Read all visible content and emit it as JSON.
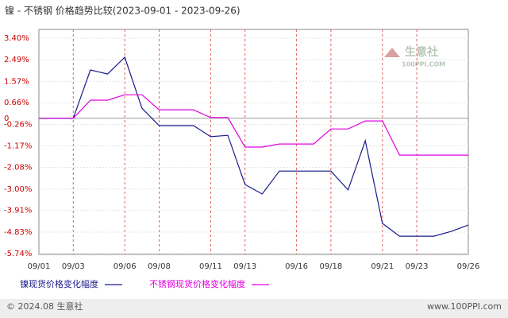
{
  "chart_data": {
    "type": "line",
    "title": "镍 - 不锈钢 价格趋势比较(2023-09-01 - 2023-09-26)",
    "categories": [
      "09/01",
      null,
      "09/03",
      null,
      null,
      "09/06",
      null,
      "09/08",
      null,
      null,
      "09/11",
      null,
      "09/13",
      null,
      null,
      "09/16",
      null,
      "09/18",
      null,
      null,
      "09/21",
      null,
      "09/23",
      null,
      null,
      "09/26"
    ],
    "series": [
      {
        "name": "镍现货价格变化幅度",
        "color": "#1a1a8c",
        "values": [
          0,
          0,
          0,
          2.05,
          1.88,
          2.59,
          0.43,
          -0.31,
          -0.31,
          -0.31,
          -0.78,
          -0.72,
          -2.81,
          -3.21,
          -2.24,
          -2.24,
          -2.24,
          -2.24,
          -3.04,
          -0.95,
          -4.46,
          -5.0,
          -5.0,
          -5.0,
          -4.8,
          -4.53
        ]
      },
      {
        "name": "不锈钢现货价格变化幅度",
        "color": "#e000e0",
        "values": [
          0,
          0,
          0,
          0.77,
          0.77,
          1.0,
          1.0,
          0.36,
          0.36,
          0.36,
          0.03,
          0.03,
          -1.22,
          -1.22,
          -1.09,
          -1.09,
          -1.09,
          -0.45,
          -0.45,
          -0.11,
          -0.11,
          -1.56,
          -1.56,
          -1.56,
          -1.56,
          -1.56
        ]
      }
    ],
    "ylim": [
      -5.74,
      3.4
    ],
    "yticks": [
      {
        "value": 3.4,
        "label": "3.40%"
      },
      {
        "value": 2.49,
        "label": "2.49%"
      },
      {
        "value": 1.57,
        "label": "1.57%"
      },
      {
        "value": 0.66,
        "label": "0.66%"
      },
      0,
      {
        "value": -0.26,
        "label": "-0.26%"
      },
      {
        "value": -1.17,
        "label": "-1.17%"
      },
      {
        "value": -2.08,
        "label": "-2.08%"
      },
      {
        "value": -3.0,
        "label": "-3.00%"
      },
      {
        "value": -3.91,
        "label": "-3.91%"
      },
      {
        "value": -4.83,
        "label": "-4.83%"
      },
      {
        "value": -5.74,
        "label": "-5.74%"
      }
    ],
    "grid": true,
    "watermark": [
      "生意社",
      "100PPI.COM"
    ],
    "footer": {
      "copyright": "© 2024.08 生意社",
      "site": "www.100PPI.com"
    }
  }
}
